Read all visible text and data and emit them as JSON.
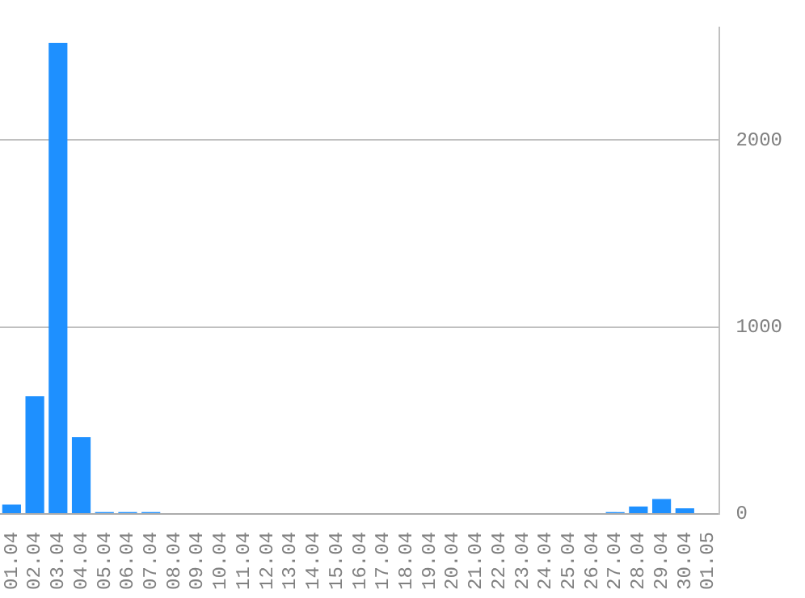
{
  "chart_data": {
    "type": "bar",
    "categories": [
      "01.04",
      "02.04",
      "03.04",
      "04.04",
      "05.04",
      "06.04",
      "07.04",
      "08.04",
      "09.04",
      "10.04",
      "11.04",
      "12.04",
      "13.04",
      "14.04",
      "15.04",
      "16.04",
      "17.04",
      "18.04",
      "19.04",
      "20.04",
      "21.04",
      "22.04",
      "23.04",
      "24.04",
      "25.04",
      "26.04",
      "27.04",
      "28.04",
      "29.04",
      "30.04",
      "01.05"
    ],
    "values": [
      50,
      630,
      2520,
      410,
      10,
      10,
      10,
      0,
      0,
      0,
      0,
      0,
      0,
      0,
      0,
      0,
      0,
      0,
      0,
      0,
      0,
      0,
      0,
      0,
      0,
      0,
      10,
      40,
      80,
      30,
      0
    ],
    "color": "#1e90ff",
    "ylim": [
      0,
      2600
    ],
    "yticks": [
      0,
      1000,
      2000
    ],
    "grid": "y",
    "legend": false
  }
}
